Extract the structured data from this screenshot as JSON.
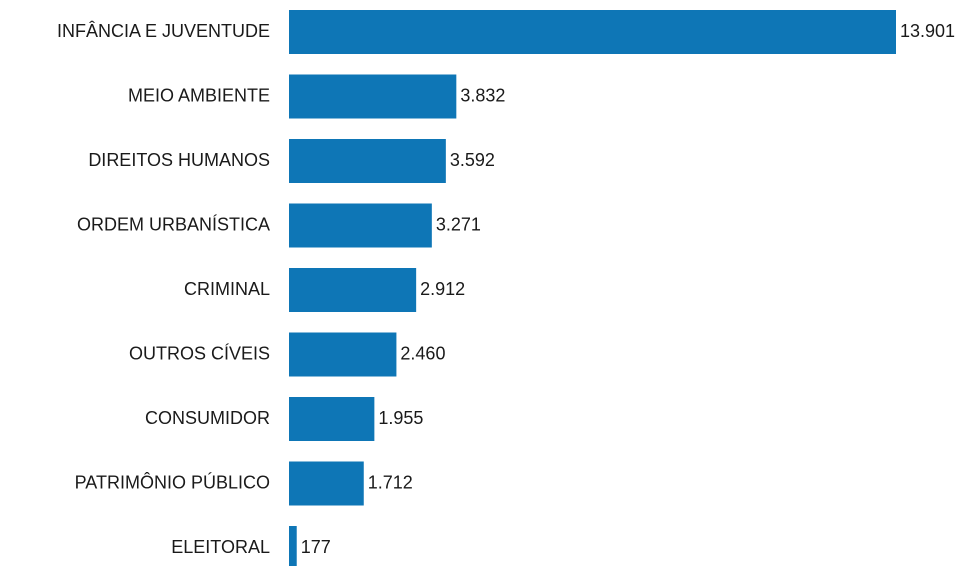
{
  "chart_data": {
    "type": "hbar",
    "categories": [
      "INFÂNCIA E JUVENTUDE",
      "MEIO AMBIENTE",
      "DIREITOS HUMANOS",
      "ORDEM URBANÍSTICA",
      "CRIMINAL",
      "OUTROS CÍVEIS",
      "CONSUMIDOR",
      "PATRIMÔNIO PÚBLICO",
      "ELEITORAL"
    ],
    "values": [
      13901,
      3832,
      3592,
      3271,
      2912,
      2460,
      1955,
      1712,
      177
    ],
    "value_labels": [
      "13.901",
      "3.832",
      "3.592",
      "3.271",
      "2.912",
      "2.460",
      "1.955",
      "1.712",
      "177"
    ],
    "color": "#0e76b6"
  }
}
